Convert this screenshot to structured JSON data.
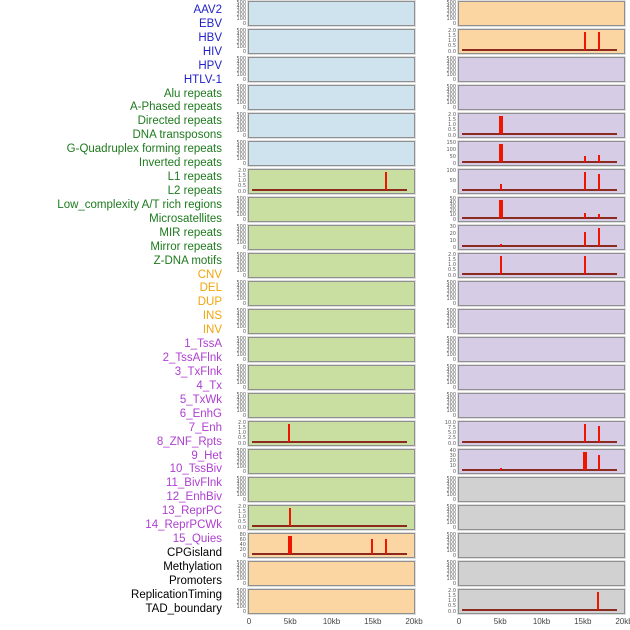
{
  "chart_data": {
    "type": "bar",
    "title": "",
    "xlabel": "",
    "ylabel": "",
    "x_range_kb": [
      0,
      20
    ],
    "x_ticks": [
      "0",
      "5kb",
      "10kb",
      "15kb",
      "20kb"
    ],
    "default_yticks": [
      "500",
      "400",
      "300",
      "200",
      "100",
      "0"
    ],
    "default_ymax": 500,
    "legend": "none",
    "grid": "off",
    "label_colors": {
      "virus": "#1f1fc8",
      "repeat": "#1e7a1e",
      "sv": "#f2a50c",
      "chromhmm": "#ae3fd0",
      "other": "#000000"
    },
    "panel_bg": {
      "blue": "#cee3ed",
      "green": "#c9dfa2",
      "orange": "#fbd5a2",
      "purple": "#d7cce6",
      "gray": "#d1d1d1"
    },
    "spike_color": "#f01500",
    "baseline_color": "#8c2a20",
    "labels": [
      {
        "text": "AAV2",
        "group": "virus"
      },
      {
        "text": "EBV",
        "group": "virus"
      },
      {
        "text": "HBV",
        "group": "virus"
      },
      {
        "text": "HIV",
        "group": "virus"
      },
      {
        "text": "HPV",
        "group": "virus"
      },
      {
        "text": "HTLV-1",
        "group": "virus"
      },
      {
        "text": "Alu repeats",
        "group": "repeat"
      },
      {
        "text": "A-Phased repeats",
        "group": "repeat"
      },
      {
        "text": "Directed repeats",
        "group": "repeat"
      },
      {
        "text": "DNA transposons",
        "group": "repeat"
      },
      {
        "text": "G-Quadruplex forming repeats",
        "group": "repeat"
      },
      {
        "text": "Inverted repeats",
        "group": "repeat"
      },
      {
        "text": "L1 repeats",
        "group": "repeat"
      },
      {
        "text": "L2 repeats",
        "group": "repeat"
      },
      {
        "text": "Low_complexity A/T rich regions",
        "group": "repeat"
      },
      {
        "text": "Microsatellites",
        "group": "repeat"
      },
      {
        "text": "MIR repeats",
        "group": "repeat"
      },
      {
        "text": "Mirror repeats",
        "group": "repeat"
      },
      {
        "text": "Z-DNA motifs",
        "group": "repeat"
      },
      {
        "text": "CNV",
        "group": "sv"
      },
      {
        "text": "DEL",
        "group": "sv"
      },
      {
        "text": "DUP",
        "group": "sv"
      },
      {
        "text": "INS",
        "group": "sv"
      },
      {
        "text": "INV",
        "group": "sv"
      },
      {
        "text": "1_TssA",
        "group": "chromhmm"
      },
      {
        "text": "2_TssAFlnk",
        "group": "chromhmm"
      },
      {
        "text": "3_TxFlnk",
        "group": "chromhmm"
      },
      {
        "text": "4_Tx",
        "group": "chromhmm"
      },
      {
        "text": "5_TxWk",
        "group": "chromhmm"
      },
      {
        "text": "6_EnhG",
        "group": "chromhmm"
      },
      {
        "text": "7_Enh",
        "group": "chromhmm"
      },
      {
        "text": "8_ZNF_Rpts",
        "group": "chromhmm"
      },
      {
        "text": "9_Het",
        "group": "chromhmm"
      },
      {
        "text": "10_TssBiv",
        "group": "chromhmm"
      },
      {
        "text": "11_BivFlnk",
        "group": "chromhmm"
      },
      {
        "text": "12_EnhBiv",
        "group": "chromhmm"
      },
      {
        "text": "13_ReprPC",
        "group": "chromhmm"
      },
      {
        "text": "14_ReprPCWk",
        "group": "chromhmm"
      },
      {
        "text": "15_Quies",
        "group": "chromhmm"
      },
      {
        "text": "CPGisland",
        "group": "other"
      },
      {
        "text": "Methylation",
        "group": "other"
      },
      {
        "text": "Promoters",
        "group": "other"
      },
      {
        "text": "ReplicationTiming",
        "group": "other"
      },
      {
        "text": "TAD_boundary",
        "group": "other"
      }
    ],
    "panels": [
      {
        "feature": "AAV2",
        "side": "left",
        "row": 1,
        "bg": "blue"
      },
      {
        "feature": "EBV",
        "side": "left",
        "row": 2,
        "bg": "blue"
      },
      {
        "feature": "HBV",
        "side": "left",
        "row": 3,
        "bg": "blue"
      },
      {
        "feature": "HIV",
        "side": "left",
        "row": 4,
        "bg": "blue"
      },
      {
        "feature": "HPV",
        "side": "left",
        "row": 5,
        "bg": "blue"
      },
      {
        "feature": "HTLV-1",
        "side": "left",
        "row": 6,
        "bg": "blue"
      },
      {
        "feature": "Alu repeats",
        "side": "left",
        "row": 7,
        "bg": "green",
        "ymax": 2,
        "yticks": [
          "2.0",
          "1.5",
          "1.0",
          "0.5",
          "0.0"
        ],
        "spikes": [
          {
            "kb": 16.6,
            "v": 2.0
          }
        ],
        "baseline": true
      },
      {
        "feature": "A-Phased repeats",
        "side": "left",
        "row": 8,
        "bg": "green"
      },
      {
        "feature": "Directed repeats",
        "side": "left",
        "row": 9,
        "bg": "green"
      },
      {
        "feature": "DNA transposons",
        "side": "left",
        "row": 10,
        "bg": "green"
      },
      {
        "feature": "G-Quadruplex forming repeats",
        "side": "left",
        "row": 11,
        "bg": "green"
      },
      {
        "feature": "Inverted repeats",
        "side": "left",
        "row": 12,
        "bg": "green"
      },
      {
        "feature": "L1 repeats",
        "side": "left",
        "row": 13,
        "bg": "green"
      },
      {
        "feature": "L2 repeats",
        "side": "left",
        "row": 14,
        "bg": "green"
      },
      {
        "feature": "Low_complexity A/T rich regions",
        "side": "left",
        "row": 15,
        "bg": "green"
      },
      {
        "feature": "Microsatellites",
        "side": "left",
        "row": 16,
        "bg": "green",
        "ymax": 2,
        "yticks": [
          "2.0",
          "1.5",
          "1.0",
          "0.5",
          "0.0"
        ],
        "spikes": [
          {
            "kb": 4.9,
            "v": 2.0
          }
        ],
        "baseline": true
      },
      {
        "feature": "MIR repeats",
        "side": "left",
        "row": 17,
        "bg": "green"
      },
      {
        "feature": "Mirror repeats",
        "side": "left",
        "row": 18,
        "bg": "green"
      },
      {
        "feature": "Z-DNA motifs",
        "side": "left",
        "row": 19,
        "bg": "green",
        "ymax": 2,
        "yticks": [
          "2.0",
          "1.5",
          "1.0",
          "0.5",
          "0.0"
        ],
        "spikes": [
          {
            "kb": 5.0,
            "v": 2.0
          }
        ],
        "baseline": true
      },
      {
        "feature": "CNV",
        "side": "left",
        "row": 20,
        "bg": "orange",
        "ymax": 80,
        "yticks": [
          "80",
          "60",
          "40",
          "20",
          "0"
        ],
        "spikes": [
          {
            "kb": 5.0,
            "v": 80,
            "wide": true
          },
          {
            "kb": 14.9,
            "v": 65
          },
          {
            "kb": 16.6,
            "v": 65
          }
        ],
        "baseline": true
      },
      {
        "feature": "DEL",
        "side": "left",
        "row": 21,
        "bg": "orange"
      },
      {
        "feature": "DUP",
        "side": "left",
        "row": 22,
        "bg": "orange"
      },
      {
        "feature": "INS",
        "side": "right",
        "row": 1,
        "bg": "orange"
      },
      {
        "feature": "INV",
        "side": "right",
        "row": 2,
        "bg": "orange",
        "ymax": 2,
        "yticks": [
          "2.0",
          "1.5",
          "1.0",
          "0.5",
          "0.0"
        ],
        "spikes": [
          {
            "kb": 15.3,
            "v": 2.0
          },
          {
            "kb": 17.0,
            "v": 2.0
          }
        ],
        "baseline": true
      },
      {
        "feature": "1_TssA",
        "side": "right",
        "row": 3,
        "bg": "purple"
      },
      {
        "feature": "2_TssAFlnk",
        "side": "right",
        "row": 4,
        "bg": "purple"
      },
      {
        "feature": "3_TxFlnk",
        "side": "right",
        "row": 5,
        "bg": "purple",
        "ymax": 2,
        "yticks": [
          "2.0",
          "1.5",
          "1.0",
          "0.5",
          "0.0"
        ],
        "spikes": [
          {
            "kb": 5.1,
            "v": 2.0,
            "wide": true
          }
        ],
        "baseline": true
      },
      {
        "feature": "4_Tx",
        "side": "right",
        "row": 6,
        "bg": "purple",
        "ymax": 150,
        "yticks": [
          "150",
          "100",
          "50",
          "0"
        ],
        "spikes": [
          {
            "kb": 5.1,
            "v": 150,
            "wide": true
          },
          {
            "kb": 15.3,
            "v": 50
          },
          {
            "kb": 17.0,
            "v": 60
          }
        ],
        "baseline": true
      },
      {
        "feature": "5_TxWk",
        "side": "right",
        "row": 7,
        "bg": "purple",
        "ymax": 100,
        "yticks": [
          "100",
          "50",
          "0"
        ],
        "spikes": [
          {
            "kb": 5.1,
            "v": 35
          },
          {
            "kb": 15.3,
            "v": 100
          },
          {
            "kb": 17.0,
            "v": 90
          }
        ],
        "baseline": true
      },
      {
        "feature": "6_EnhG",
        "side": "right",
        "row": 8,
        "bg": "purple",
        "ymax": 50,
        "yticks": [
          "50",
          "40",
          "30",
          "20",
          "10",
          "0"
        ],
        "spikes": [
          {
            "kb": 5.1,
            "v": 50,
            "wide": true
          },
          {
            "kb": 15.3,
            "v": 15
          },
          {
            "kb": 17.0,
            "v": 10
          }
        ],
        "baseline": true
      },
      {
        "feature": "7_Enh",
        "side": "right",
        "row": 9,
        "bg": "purple",
        "ymax": 30,
        "yticks": [
          "30",
          "20",
          "10",
          "0"
        ],
        "spikes": [
          {
            "kb": 5.1,
            "v": 4
          },
          {
            "kb": 15.3,
            "v": 23
          },
          {
            "kb": 17.0,
            "v": 30
          }
        ],
        "baseline": true
      },
      {
        "feature": "8_ZNF_Rpts",
        "side": "right",
        "row": 10,
        "bg": "purple",
        "ymax": 2,
        "yticks": [
          "2.0",
          "1.5",
          "1.0",
          "0.5",
          "0.0"
        ],
        "spikes": [
          {
            "kb": 5.1,
            "v": 2.0
          },
          {
            "kb": 15.3,
            "v": 2.0
          }
        ],
        "baseline": true
      },
      {
        "feature": "9_Het",
        "side": "right",
        "row": 11,
        "bg": "purple"
      },
      {
        "feature": "10_TssBiv",
        "side": "right",
        "row": 12,
        "bg": "purple"
      },
      {
        "feature": "11_BivFlnk",
        "side": "right",
        "row": 13,
        "bg": "purple"
      },
      {
        "feature": "12_EnhBiv",
        "side": "right",
        "row": 14,
        "bg": "purple"
      },
      {
        "feature": "13_ReprPC",
        "side": "right",
        "row": 15,
        "bg": "purple"
      },
      {
        "feature": "14_ReprPCWk",
        "side": "right",
        "row": 16,
        "bg": "purple",
        "ymax": 10,
        "yticks": [
          "10.0",
          "7.5",
          "5.0",
          "2.5",
          "0.0"
        ],
        "spikes": [
          {
            "kb": 15.3,
            "v": 10
          },
          {
            "kb": 17.0,
            "v": 9
          }
        ],
        "baseline": true
      },
      {
        "feature": "15_Quies",
        "side": "right",
        "row": 17,
        "bg": "purple",
        "ymax": 40,
        "yticks": [
          "40",
          "30",
          "20",
          "10",
          "0"
        ],
        "spikes": [
          {
            "kb": 5.1,
            "v": 5
          },
          {
            "kb": 15.3,
            "v": 40,
            "wide": true
          },
          {
            "kb": 17.0,
            "v": 33
          }
        ],
        "baseline": true
      },
      {
        "feature": "CPGisland",
        "side": "right",
        "row": 18,
        "bg": "gray"
      },
      {
        "feature": "Methylation",
        "side": "right",
        "row": 19,
        "bg": "gray"
      },
      {
        "feature": "Promoters",
        "side": "right",
        "row": 20,
        "bg": "gray"
      },
      {
        "feature": "ReplicationTiming",
        "side": "right",
        "row": 21,
        "bg": "gray"
      },
      {
        "feature": "TAD_boundary",
        "side": "right",
        "row": 22,
        "bg": "gray",
        "ymax": 2,
        "yticks": [
          "2.0",
          "1.5",
          "1.0",
          "0.5",
          "0.0"
        ],
        "spikes": [
          {
            "kb": 16.9,
            "v": 2.0
          }
        ],
        "baseline": true
      }
    ]
  }
}
